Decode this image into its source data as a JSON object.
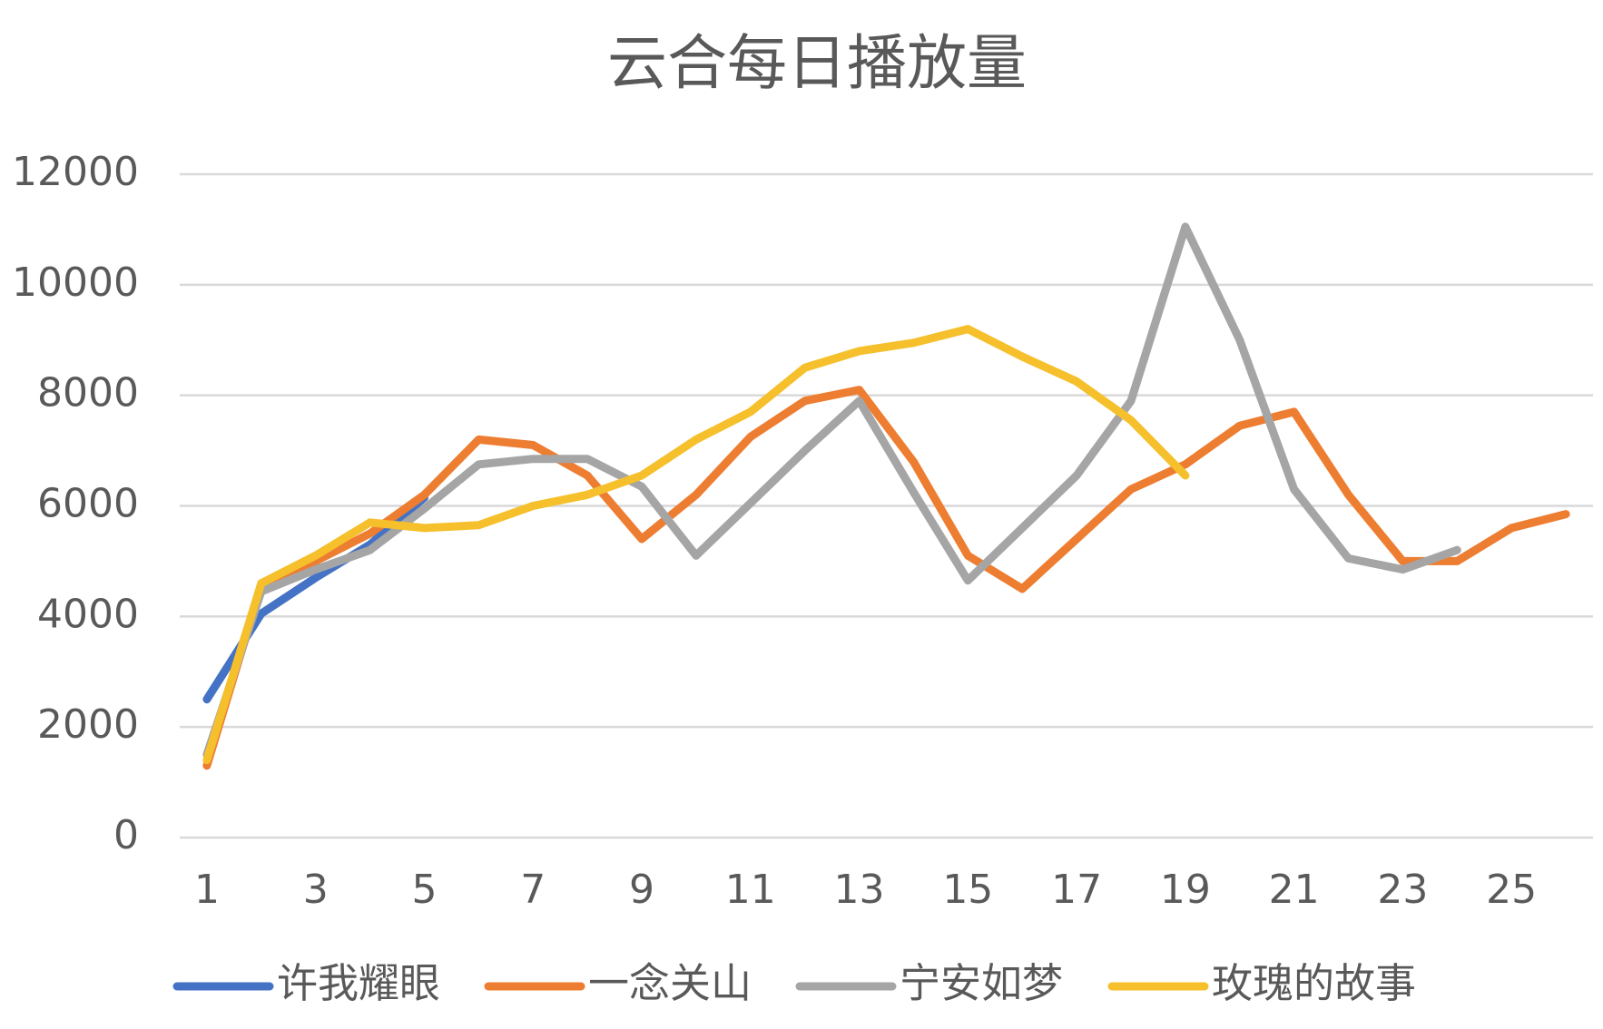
{
  "chart_data": {
    "type": "line",
    "title": "云合每日播放量",
    "categories": [
      "1",
      null,
      "3",
      null,
      "5",
      null,
      "7",
      null,
      "9",
      null,
      "11",
      null,
      "13",
      null,
      "15",
      null,
      "17",
      null,
      "19",
      null,
      "21",
      null,
      "23",
      null,
      "25",
      null
    ],
    "series": [
      {
        "name": "许我耀眼",
        "color": "#4472c4",
        "values": [
          2500,
          4050,
          4700,
          5300,
          6150,
          null,
          null,
          null,
          null,
          null,
          null,
          null,
          null,
          null,
          null,
          null,
          null,
          null,
          null,
          null,
          null,
          null,
          null,
          null,
          null,
          null
        ]
      },
      {
        "name": "一念关山",
        "color": "#ed7d31",
        "values": [
          1300,
          4550,
          5000,
          5500,
          6200,
          7200,
          7100,
          6550,
          5400,
          6200,
          7250,
          7900,
          8100,
          6800,
          5100,
          4500,
          5400,
          6300,
          6750,
          7450,
          7700,
          6200,
          5000,
          5000,
          5600,
          5850
        ]
      },
      {
        "name": "宁安如梦",
        "color": "#a5a5a5",
        "values": [
          1500,
          4450,
          4850,
          5200,
          5950,
          6750,
          6850,
          6850,
          6350,
          5100,
          6050,
          7000,
          7900,
          6250,
          4650,
          5600,
          6550,
          7900,
          11050,
          9000,
          6300,
          5050,
          4850,
          5200,
          null,
          null
        ]
      },
      {
        "name": "玫瑰的故事",
        "color": "#f5c02c",
        "values": [
          1400,
          4600,
          5100,
          5700,
          5600,
          5650,
          6000,
          6200,
          6550,
          7200,
          7700,
          8500,
          8800,
          8950,
          9200,
          8700,
          8250,
          7550,
          6550,
          null,
          null,
          null,
          null,
          null,
          null,
          null
        ]
      }
    ],
    "ylim": [
      0,
      12000
    ],
    "yticks": [
      0,
      2000,
      4000,
      6000,
      8000,
      10000,
      12000
    ],
    "grid": true,
    "legend": "bottom"
  }
}
